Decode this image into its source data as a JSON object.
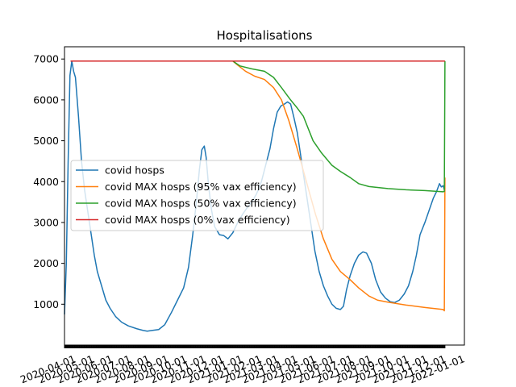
{
  "chart_data": {
    "type": "line",
    "title": "Hospitalisations",
    "xlabel": "",
    "ylabel": "",
    "x_range": [
      "2020-03-18",
      "2022-01-05"
    ],
    "ylim": [
      0,
      7300
    ],
    "y_ticks": [
      1000,
      2000,
      3000,
      4000,
      5000,
      6000,
      7000
    ],
    "x_ticks": [
      "2020-04-01",
      "2020-05-01",
      "2020-06-01",
      "2020-07-01",
      "2020-08-01",
      "2020-09-01",
      "2020-10-01",
      "2020-11-01",
      "2020-12-01",
      "2021-01-01",
      "2021-02-01",
      "2021-03-01",
      "2021-04-01",
      "2021-05-01",
      "2021-06-01",
      "2021-07-01",
      "2021-08-01",
      "2021-09-01",
      "2021-10-01",
      "2021-11-01",
      "2021-12-01",
      "2022-01-01"
    ],
    "grid": false,
    "legend_position": "center-left",
    "series": [
      {
        "name": "covid hosps",
        "color": "#1f77b4",
        "points": [
          [
            "2020-03-18",
            750
          ],
          [
            "2020-03-21",
            2000
          ],
          [
            "2020-03-24",
            4500
          ],
          [
            "2020-03-27",
            6600
          ],
          [
            "2020-03-30",
            6950
          ],
          [
            "2020-04-02",
            6700
          ],
          [
            "2020-04-05",
            6550
          ],
          [
            "2020-04-10",
            5600
          ],
          [
            "2020-04-15",
            4500
          ],
          [
            "2020-04-20",
            3800
          ],
          [
            "2020-04-25",
            3300
          ],
          [
            "2020-05-01",
            2700
          ],
          [
            "2020-05-06",
            2200
          ],
          [
            "2020-05-11",
            1800
          ],
          [
            "2020-05-18",
            1450
          ],
          [
            "2020-05-25",
            1100
          ],
          [
            "2020-06-01",
            900
          ],
          [
            "2020-06-10",
            700
          ],
          [
            "2020-06-20",
            560
          ],
          [
            "2020-07-01",
            470
          ],
          [
            "2020-07-15",
            400
          ],
          [
            "2020-07-25",
            360
          ],
          [
            "2020-08-01",
            340
          ],
          [
            "2020-08-10",
            360
          ],
          [
            "2020-08-20",
            380
          ],
          [
            "2020-08-30",
            500
          ],
          [
            "2020-09-10",
            800
          ],
          [
            "2020-09-20",
            1100
          ],
          [
            "2020-09-30",
            1400
          ],
          [
            "2020-10-08",
            1900
          ],
          [
            "2020-10-15",
            2700
          ],
          [
            "2020-10-21",
            3500
          ],
          [
            "2020-10-26",
            4300
          ],
          [
            "2020-10-30",
            4780
          ],
          [
            "2020-11-03",
            4870
          ],
          [
            "2020-11-06",
            4600
          ],
          [
            "2020-11-10",
            3900
          ],
          [
            "2020-11-15",
            3300
          ],
          [
            "2020-11-20",
            2900
          ],
          [
            "2020-11-28",
            2700
          ],
          [
            "2020-12-05",
            2680
          ],
          [
            "2020-12-12",
            2600
          ],
          [
            "2020-12-20",
            2750
          ],
          [
            "2020-12-28",
            3000
          ],
          [
            "2021-01-05",
            3200
          ],
          [
            "2021-01-12",
            3350
          ],
          [
            "2021-01-20",
            3500
          ],
          [
            "2021-01-28",
            3700
          ],
          [
            "2021-02-05",
            4000
          ],
          [
            "2021-02-12",
            4400
          ],
          [
            "2021-02-19",
            4800
          ],
          [
            "2021-02-25",
            5300
          ],
          [
            "2021-03-03",
            5700
          ],
          [
            "2021-03-09",
            5850
          ],
          [
            "2021-03-15",
            5900
          ],
          [
            "2021-03-20",
            5950
          ],
          [
            "2021-03-25",
            5900
          ],
          [
            "2021-03-30",
            5600
          ],
          [
            "2021-04-05",
            5200
          ],
          [
            "2021-04-10",
            4700
          ],
          [
            "2021-04-15",
            4200
          ],
          [
            "2021-04-20",
            3700
          ],
          [
            "2021-04-27",
            3000
          ],
          [
            "2021-05-04",
            2300
          ],
          [
            "2021-05-11",
            1800
          ],
          [
            "2021-05-18",
            1450
          ],
          [
            "2021-05-25",
            1200
          ],
          [
            "2021-06-01",
            1000
          ],
          [
            "2021-06-08",
            900
          ],
          [
            "2021-06-15",
            870
          ],
          [
            "2021-06-20",
            950
          ],
          [
            "2021-06-25",
            1350
          ],
          [
            "2021-07-01",
            1700
          ],
          [
            "2021-07-08",
            2000
          ],
          [
            "2021-07-15",
            2200
          ],
          [
            "2021-07-22",
            2280
          ],
          [
            "2021-07-28",
            2250
          ],
          [
            "2021-08-05",
            2000
          ],
          [
            "2021-08-12",
            1600
          ],
          [
            "2021-08-20",
            1300
          ],
          [
            "2021-08-28",
            1150
          ],
          [
            "2021-09-05",
            1060
          ],
          [
            "2021-09-12",
            1040
          ],
          [
            "2021-09-20",
            1100
          ],
          [
            "2021-09-28",
            1250
          ],
          [
            "2021-10-05",
            1450
          ],
          [
            "2021-10-12",
            1800
          ],
          [
            "2021-10-18",
            2200
          ],
          [
            "2021-10-24",
            2700
          ],
          [
            "2021-11-01",
            3000
          ],
          [
            "2021-11-08",
            3300
          ],
          [
            "2021-11-15",
            3600
          ],
          [
            "2021-11-20",
            3750
          ],
          [
            "2021-11-25",
            3950
          ],
          [
            "2021-11-28",
            3870
          ],
          [
            "2021-12-01",
            3900
          ],
          [
            "2021-12-03",
            3800
          ]
        ]
      },
      {
        "name": "covid MAX hosps (95% vax efficiency)",
        "color": "#ff7f0e",
        "points": [
          [
            "2020-03-28",
            6950
          ],
          [
            "2020-12-20",
            6950
          ],
          [
            "2020-12-28",
            6850
          ],
          [
            "2021-01-10",
            6700
          ],
          [
            "2021-01-25",
            6580
          ],
          [
            "2021-02-10",
            6500
          ],
          [
            "2021-02-25",
            6300
          ],
          [
            "2021-03-10",
            6000
          ],
          [
            "2021-03-22",
            5500
          ],
          [
            "2021-04-05",
            4800
          ],
          [
            "2021-04-20",
            4000
          ],
          [
            "2021-05-05",
            3200
          ],
          [
            "2021-05-18",
            2600
          ],
          [
            "2021-06-01",
            2100
          ],
          [
            "2021-06-15",
            1800
          ],
          [
            "2021-07-01",
            1600
          ],
          [
            "2021-07-15",
            1400
          ],
          [
            "2021-08-01",
            1200
          ],
          [
            "2021-08-15",
            1100
          ],
          [
            "2021-09-01",
            1050
          ],
          [
            "2021-10-01",
            980
          ],
          [
            "2021-11-01",
            920
          ],
          [
            "2021-12-01",
            870
          ],
          [
            "2021-12-03",
            840
          ],
          [
            "2021-12-04",
            4100
          ]
        ]
      },
      {
        "name": "covid MAX hosps (50% vax efficiency)",
        "color": "#2ca02c",
        "points": [
          [
            "2020-03-28",
            6950
          ],
          [
            "2020-12-20",
            6950
          ],
          [
            "2021-01-01",
            6830
          ],
          [
            "2021-01-20",
            6760
          ],
          [
            "2021-02-10",
            6700
          ],
          [
            "2021-02-25",
            6550
          ],
          [
            "2021-03-10",
            6300
          ],
          [
            "2021-03-25",
            6000
          ],
          [
            "2021-04-05",
            5800
          ],
          [
            "2021-04-15",
            5600
          ],
          [
            "2021-05-01",
            5000
          ],
          [
            "2021-05-15",
            4700
          ],
          [
            "2021-06-01",
            4400
          ],
          [
            "2021-06-15",
            4250
          ],
          [
            "2021-07-01",
            4100
          ],
          [
            "2021-07-15",
            3950
          ],
          [
            "2021-08-01",
            3880
          ],
          [
            "2021-09-01",
            3830
          ],
          [
            "2021-10-01",
            3800
          ],
          [
            "2021-11-01",
            3780
          ],
          [
            "2021-12-01",
            3750
          ],
          [
            "2021-12-03",
            3760
          ],
          [
            "2021-12-04",
            6950
          ]
        ]
      },
      {
        "name": "covid MAX hosps (0% vax efficiency)",
        "color": "#d62728",
        "points": [
          [
            "2020-03-28",
            6950
          ],
          [
            "2021-12-04",
            6950
          ]
        ]
      }
    ]
  }
}
